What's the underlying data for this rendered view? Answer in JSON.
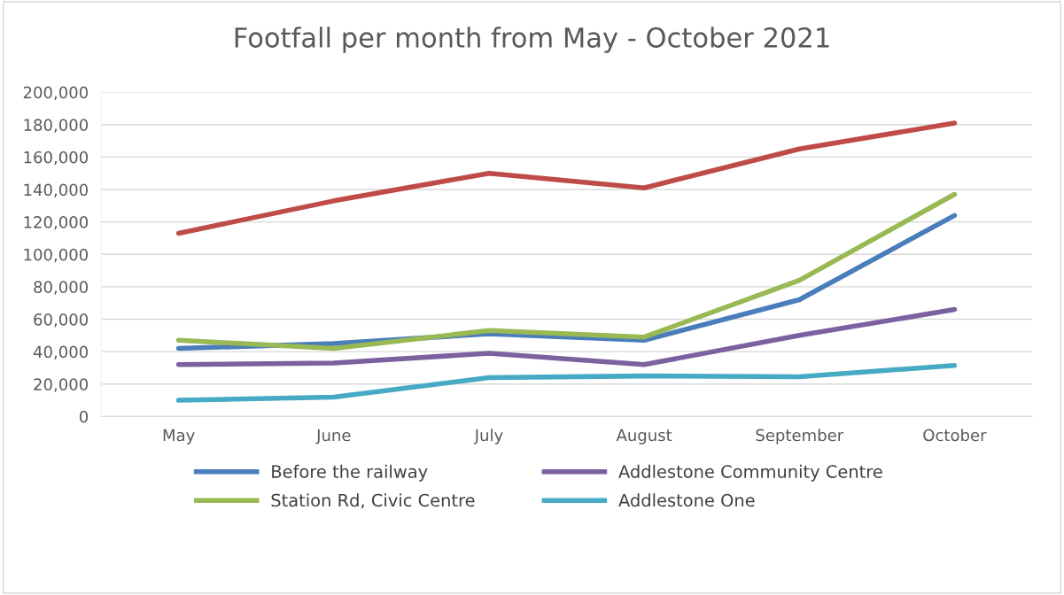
{
  "chart_data": {
    "type": "line",
    "title": "Footfall per month from May - October 2021",
    "categories": [
      "May",
      "June",
      "July",
      "August",
      "September",
      "October"
    ],
    "series": [
      {
        "name": "Before the railway",
        "color": "#4a7ebb",
        "values": [
          42000,
          45000,
          51000,
          47000,
          72000,
          124000
        ]
      },
      {
        "color": "#be4b48",
        "values": [
          113000,
          133000,
          150000,
          141000,
          165000,
          181000
        ]
      },
      {
        "name": "Station Rd, Civic Centre",
        "color": "#98b954",
        "values": [
          47000,
          42000,
          53000,
          49000,
          84000,
          137000
        ]
      },
      {
        "name": "Addlestone Community Centre",
        "color": "#7d60a0",
        "values": [
          32000,
          33000,
          39000,
          32000,
          50000,
          66000
        ]
      },
      {
        "name": "Addlestone One",
        "color": "#46aac5",
        "values": [
          10000,
          12000,
          24000,
          25000,
          24500,
          31500
        ]
      }
    ],
    "ylim": [
      0,
      200000
    ],
    "yticks": [
      0,
      {
        "value": 20000,
        "label": "20,000"
      },
      {
        "value": 40000,
        "label": "40,000"
      },
      {
        "value": 60000,
        "label": "60,000"
      },
      {
        "value": 80000,
        "label": "80,000"
      },
      {
        "value": 100000,
        "label": "100,000"
      },
      {
        "value": 120000,
        "label": "120,000"
      },
      {
        "value": 140000,
        "label": "140,000"
      },
      {
        "value": 160000,
        "label": "160,000"
      },
      {
        "value": 180000,
        "label": "180,000"
      },
      {
        "value": 200000,
        "label": "200,000"
      }
    ],
    "grid": "y",
    "legend": "bottom",
    "marker": "none",
    "line_style": "solid"
  }
}
